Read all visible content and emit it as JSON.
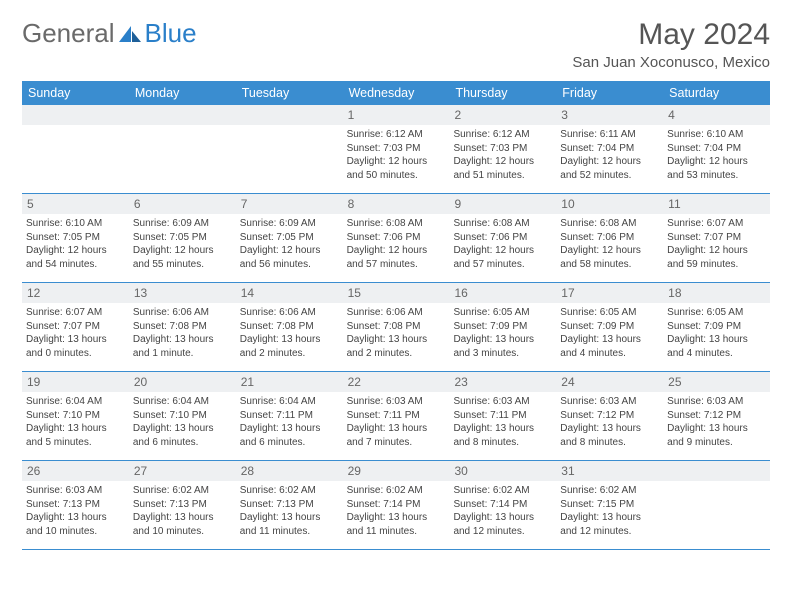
{
  "brand": {
    "part1": "General",
    "part2": "Blue"
  },
  "title": "May 2024",
  "location": "San Juan Xoconusco, Mexico",
  "colors": {
    "header_bg": "#3a8dd0",
    "header_text": "#ffffff",
    "daynum_bg": "#eef0f2",
    "border": "#3a8dd0",
    "text": "#444444",
    "brand_gray": "#6a6a6a",
    "brand_blue": "#2a7fc9"
  },
  "weekdays": [
    "Sunday",
    "Monday",
    "Tuesday",
    "Wednesday",
    "Thursday",
    "Friday",
    "Saturday"
  ],
  "weeks": [
    [
      {
        "n": "",
        "sr": "",
        "ss": "",
        "dl": ""
      },
      {
        "n": "",
        "sr": "",
        "ss": "",
        "dl": ""
      },
      {
        "n": "",
        "sr": "",
        "ss": "",
        "dl": ""
      },
      {
        "n": "1",
        "sr": "Sunrise: 6:12 AM",
        "ss": "Sunset: 7:03 PM",
        "dl": "Daylight: 12 hours and 50 minutes."
      },
      {
        "n": "2",
        "sr": "Sunrise: 6:12 AM",
        "ss": "Sunset: 7:03 PM",
        "dl": "Daylight: 12 hours and 51 minutes."
      },
      {
        "n": "3",
        "sr": "Sunrise: 6:11 AM",
        "ss": "Sunset: 7:04 PM",
        "dl": "Daylight: 12 hours and 52 minutes."
      },
      {
        "n": "4",
        "sr": "Sunrise: 6:10 AM",
        "ss": "Sunset: 7:04 PM",
        "dl": "Daylight: 12 hours and 53 minutes."
      }
    ],
    [
      {
        "n": "5",
        "sr": "Sunrise: 6:10 AM",
        "ss": "Sunset: 7:05 PM",
        "dl": "Daylight: 12 hours and 54 minutes."
      },
      {
        "n": "6",
        "sr": "Sunrise: 6:09 AM",
        "ss": "Sunset: 7:05 PM",
        "dl": "Daylight: 12 hours and 55 minutes."
      },
      {
        "n": "7",
        "sr": "Sunrise: 6:09 AM",
        "ss": "Sunset: 7:05 PM",
        "dl": "Daylight: 12 hours and 56 minutes."
      },
      {
        "n": "8",
        "sr": "Sunrise: 6:08 AM",
        "ss": "Sunset: 7:06 PM",
        "dl": "Daylight: 12 hours and 57 minutes."
      },
      {
        "n": "9",
        "sr": "Sunrise: 6:08 AM",
        "ss": "Sunset: 7:06 PM",
        "dl": "Daylight: 12 hours and 57 minutes."
      },
      {
        "n": "10",
        "sr": "Sunrise: 6:08 AM",
        "ss": "Sunset: 7:06 PM",
        "dl": "Daylight: 12 hours and 58 minutes."
      },
      {
        "n": "11",
        "sr": "Sunrise: 6:07 AM",
        "ss": "Sunset: 7:07 PM",
        "dl": "Daylight: 12 hours and 59 minutes."
      }
    ],
    [
      {
        "n": "12",
        "sr": "Sunrise: 6:07 AM",
        "ss": "Sunset: 7:07 PM",
        "dl": "Daylight: 13 hours and 0 minutes."
      },
      {
        "n": "13",
        "sr": "Sunrise: 6:06 AM",
        "ss": "Sunset: 7:08 PM",
        "dl": "Daylight: 13 hours and 1 minute."
      },
      {
        "n": "14",
        "sr": "Sunrise: 6:06 AM",
        "ss": "Sunset: 7:08 PM",
        "dl": "Daylight: 13 hours and 2 minutes."
      },
      {
        "n": "15",
        "sr": "Sunrise: 6:06 AM",
        "ss": "Sunset: 7:08 PM",
        "dl": "Daylight: 13 hours and 2 minutes."
      },
      {
        "n": "16",
        "sr": "Sunrise: 6:05 AM",
        "ss": "Sunset: 7:09 PM",
        "dl": "Daylight: 13 hours and 3 minutes."
      },
      {
        "n": "17",
        "sr": "Sunrise: 6:05 AM",
        "ss": "Sunset: 7:09 PM",
        "dl": "Daylight: 13 hours and 4 minutes."
      },
      {
        "n": "18",
        "sr": "Sunrise: 6:05 AM",
        "ss": "Sunset: 7:09 PM",
        "dl": "Daylight: 13 hours and 4 minutes."
      }
    ],
    [
      {
        "n": "19",
        "sr": "Sunrise: 6:04 AM",
        "ss": "Sunset: 7:10 PM",
        "dl": "Daylight: 13 hours and 5 minutes."
      },
      {
        "n": "20",
        "sr": "Sunrise: 6:04 AM",
        "ss": "Sunset: 7:10 PM",
        "dl": "Daylight: 13 hours and 6 minutes."
      },
      {
        "n": "21",
        "sr": "Sunrise: 6:04 AM",
        "ss": "Sunset: 7:11 PM",
        "dl": "Daylight: 13 hours and 6 minutes."
      },
      {
        "n": "22",
        "sr": "Sunrise: 6:03 AM",
        "ss": "Sunset: 7:11 PM",
        "dl": "Daylight: 13 hours and 7 minutes."
      },
      {
        "n": "23",
        "sr": "Sunrise: 6:03 AM",
        "ss": "Sunset: 7:11 PM",
        "dl": "Daylight: 13 hours and 8 minutes."
      },
      {
        "n": "24",
        "sr": "Sunrise: 6:03 AM",
        "ss": "Sunset: 7:12 PM",
        "dl": "Daylight: 13 hours and 8 minutes."
      },
      {
        "n": "25",
        "sr": "Sunrise: 6:03 AM",
        "ss": "Sunset: 7:12 PM",
        "dl": "Daylight: 13 hours and 9 minutes."
      }
    ],
    [
      {
        "n": "26",
        "sr": "Sunrise: 6:03 AM",
        "ss": "Sunset: 7:13 PM",
        "dl": "Daylight: 13 hours and 10 minutes."
      },
      {
        "n": "27",
        "sr": "Sunrise: 6:02 AM",
        "ss": "Sunset: 7:13 PM",
        "dl": "Daylight: 13 hours and 10 minutes."
      },
      {
        "n": "28",
        "sr": "Sunrise: 6:02 AM",
        "ss": "Sunset: 7:13 PM",
        "dl": "Daylight: 13 hours and 11 minutes."
      },
      {
        "n": "29",
        "sr": "Sunrise: 6:02 AM",
        "ss": "Sunset: 7:14 PM",
        "dl": "Daylight: 13 hours and 11 minutes."
      },
      {
        "n": "30",
        "sr": "Sunrise: 6:02 AM",
        "ss": "Sunset: 7:14 PM",
        "dl": "Daylight: 13 hours and 12 minutes."
      },
      {
        "n": "31",
        "sr": "Sunrise: 6:02 AM",
        "ss": "Sunset: 7:15 PM",
        "dl": "Daylight: 13 hours and 12 minutes."
      },
      {
        "n": "",
        "sr": "",
        "ss": "",
        "dl": ""
      }
    ]
  ]
}
